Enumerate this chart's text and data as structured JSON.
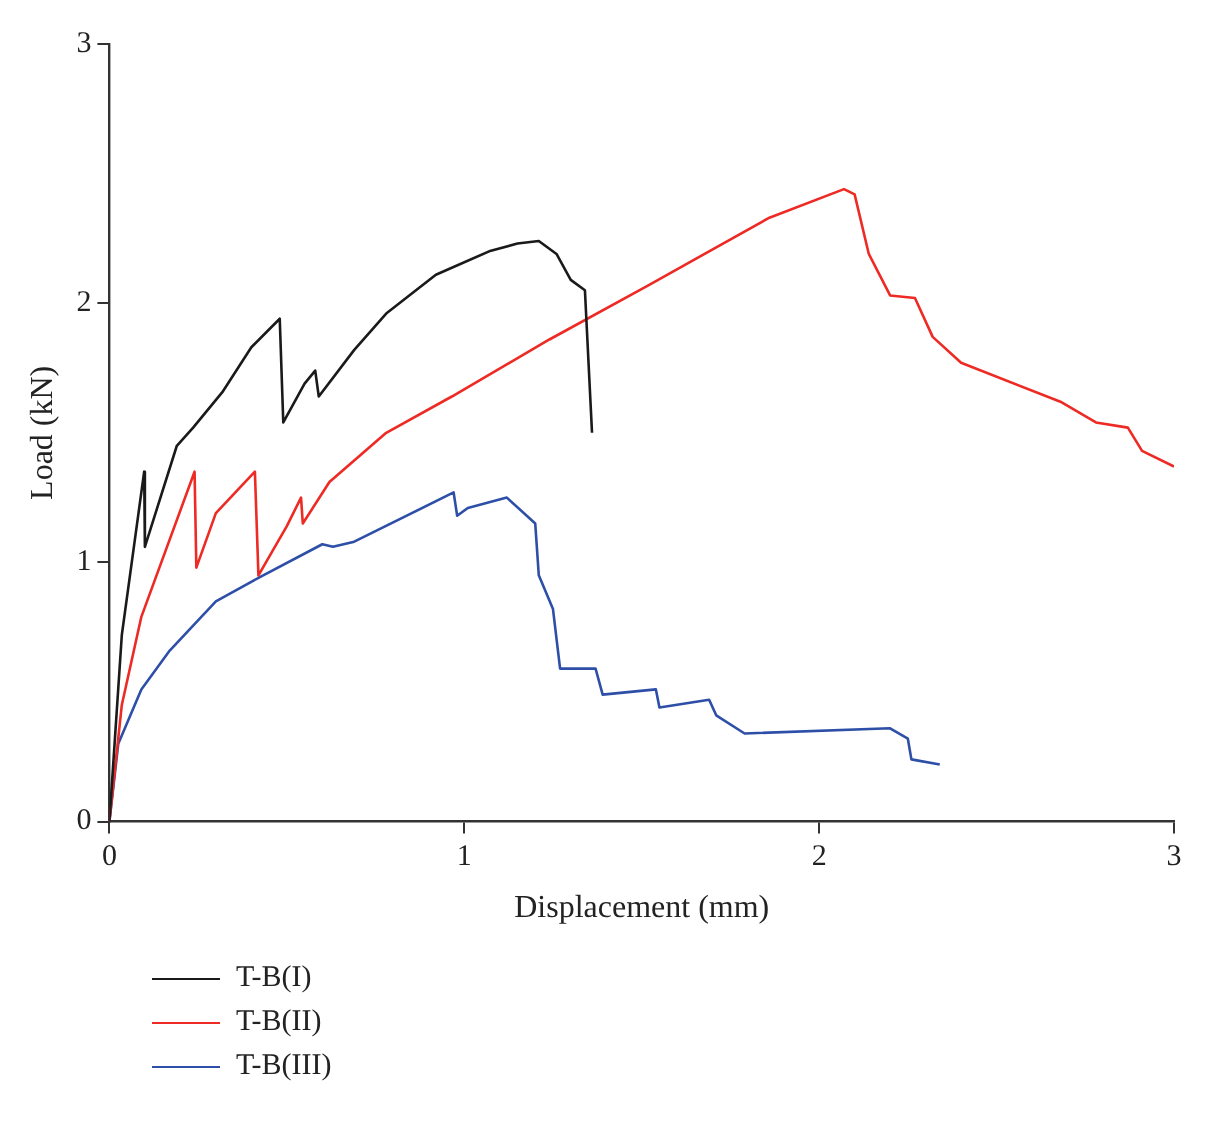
{
  "chart_data": {
    "type": "line",
    "xlabel": "Displacement (mm)",
    "ylabel": "Load (kN)",
    "xlim": [
      0,
      3
    ],
    "ylim": [
      0,
      3
    ],
    "xticks": [
      0,
      1,
      2,
      3
    ],
    "yticks": [
      0,
      1,
      2,
      3
    ],
    "grid": false,
    "legend": "bottom",
    "marker": "none",
    "line_style": "solid",
    "series": [
      {
        "name": "T-B(I)",
        "color": "#1a1a1a",
        "x": [
          0,
          0.035,
          0.098,
          0.1,
          0.19,
          0.236,
          0.32,
          0.4,
          0.48,
          0.49,
          0.55,
          0.58,
          0.59,
          0.69,
          0.78,
          0.92,
          1.07,
          1.15,
          1.21,
          1.26,
          1.3,
          1.34,
          1.36
        ],
        "values": [
          0,
          0.72,
          1.35,
          1.06,
          1.45,
          1.52,
          1.66,
          1.83,
          1.94,
          1.54,
          1.69,
          1.74,
          1.64,
          1.82,
          1.96,
          2.11,
          2.2,
          2.23,
          2.24,
          2.19,
          2.09,
          2.05,
          1.5
        ]
      },
      {
        "name": "T-B(II)",
        "color": "#ee2a24",
        "x": [
          0,
          0.035,
          0.09,
          0.24,
          0.245,
          0.3,
          0.41,
          0.42,
          0.5,
          0.54,
          0.545,
          0.62,
          0.78,
          0.965,
          1.24,
          1.52,
          1.86,
          2.07,
          2.1,
          2.14,
          2.2,
          2.27,
          2.32,
          2.4,
          2.68,
          2.78,
          2.87,
          2.91,
          3.0
        ],
        "values": [
          0,
          0.45,
          0.79,
          1.35,
          0.98,
          1.19,
          1.35,
          0.95,
          1.14,
          1.25,
          1.15,
          1.31,
          1.5,
          1.64,
          1.86,
          2.07,
          2.33,
          2.44,
          2.42,
          2.19,
          2.03,
          2.02,
          1.87,
          1.77,
          1.62,
          1.54,
          1.52,
          1.43,
          1.37
        ]
      },
      {
        "name": "T-B(III)",
        "color": "#2e4fa8",
        "x": [
          0,
          0.025,
          0.09,
          0.17,
          0.3,
          0.42,
          0.6,
          0.63,
          0.69,
          0.97,
          0.98,
          1.01,
          1.12,
          1.2,
          1.21,
          1.25,
          1.27,
          1.37,
          1.39,
          1.54,
          1.55,
          1.69,
          1.71,
          1.79,
          2.2,
          2.25,
          2.26,
          2.34
        ],
        "values": [
          0,
          0.3,
          0.51,
          0.66,
          0.85,
          0.94,
          1.07,
          1.06,
          1.08,
          1.27,
          1.18,
          1.21,
          1.25,
          1.15,
          0.95,
          0.82,
          0.59,
          0.59,
          0.49,
          0.51,
          0.44,
          0.47,
          0.41,
          0.34,
          0.36,
          0.32,
          0.24,
          0.22
        ]
      }
    ]
  }
}
